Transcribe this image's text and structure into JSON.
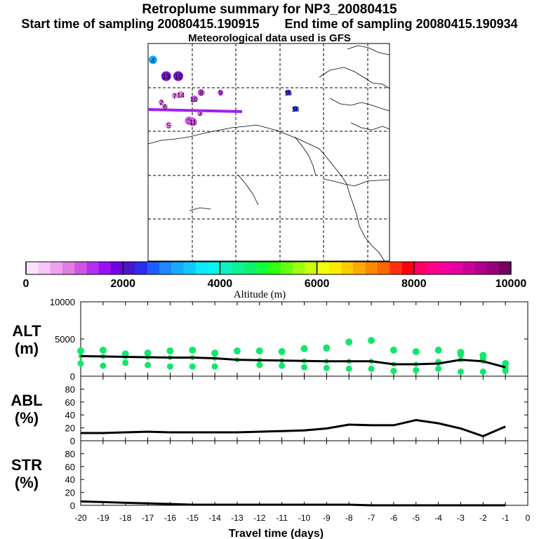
{
  "header": {
    "title": "Retroplume summary for NP3_20080415",
    "start_time": "Start time of sampling 20080415.190915",
    "end_time": "End time of sampling 20080415.190934",
    "met_data": "Meteorological data used is GFS"
  },
  "colorbar": {
    "colors": [
      "#fbe0fb",
      "#f6c6f6",
      "#eea2ee",
      "#e17ee1",
      "#cf55e6",
      "#b430ee",
      "#9a10f2",
      "#7200e6",
      "#4a14cc",
      "#2c2cf0",
      "#1e5cff",
      "#1e86ff",
      "#16aaff",
      "#10c8ff",
      "#10e6ff",
      "#08f4ee",
      "#10f0c0",
      "#10f096",
      "#10f070",
      "#10ff3a",
      "#30ff10",
      "#66ff10",
      "#9cff10",
      "#caff10",
      "#f0ff10",
      "#ffec00",
      "#ffcc00",
      "#ffaa00",
      "#ff8800",
      "#ff6600",
      "#ff3010",
      "#ff0010",
      "#ff0060",
      "#ff0088",
      "#f800a0",
      "#e600a0",
      "#cc0096",
      "#b0008c",
      "#960078",
      "#780062"
    ],
    "tick_labels": [
      "0",
      "2000",
      "4000",
      "6000",
      "8000",
      "10000"
    ],
    "label": "Altitude (m)"
  },
  "map": {
    "points": [
      {
        "label": "4",
        "color": "#16aaff",
        "size": 6,
        "tx": 0.02,
        "ty": 0.075
      },
      {
        "label": "13",
        "color": "#7a14d2",
        "size": 7,
        "tx": 0.075,
        "ty": 0.15
      },
      {
        "label": "12",
        "color": "#7a14d2",
        "size": 7,
        "tx": 0.125,
        "ty": 0.15
      },
      {
        "label": "8",
        "color": "#cf55e6",
        "size": 5,
        "tx": 0.22,
        "ty": 0.225
      },
      {
        "label": "9",
        "color": "#cf55e6",
        "size": 4,
        "tx": 0.3,
        "ty": 0.225
      },
      {
        "label": "14",
        "color": "#e17ee1",
        "size": 5,
        "tx": 0.135,
        "ty": 0.235
      },
      {
        "label": "7",
        "color": "#e17ee1",
        "size": 4,
        "tx": 0.11,
        "ty": 0.24
      },
      {
        "label": "10",
        "color": "#cf55e6",
        "size": 5,
        "tx": 0.19,
        "ty": 0.255
      },
      {
        "label": "2",
        "color": "#e17ee1",
        "size": 4,
        "tx": 0.055,
        "ty": 0.27
      },
      {
        "label": "6",
        "color": "#e17ee1",
        "size": 4,
        "tx": 0.07,
        "ty": 0.29
      },
      {
        "label": "3",
        "color": "#e17ee1",
        "size": 4,
        "tx": 0.215,
        "ty": 0.32
      },
      {
        "label": "1",
        "color": "#cf55e6",
        "size": 6,
        "tx": 0.17,
        "ty": 0.355
      },
      {
        "label": "11",
        "color": "#cf55e6",
        "size": 6,
        "tx": 0.185,
        "ty": 0.36
      },
      {
        "label": "5",
        "color": "#eea2ee",
        "size": 5,
        "tx": 0.085,
        "ty": 0.375
      },
      {
        "label": "15",
        "color": "#2c2cf0",
        "size": 4,
        "tx": 0.58,
        "ty": 0.225
      },
      {
        "label": "16",
        "color": "#2c2cf0",
        "size": 4,
        "tx": 0.61,
        "ty": 0.3
      }
    ]
  },
  "chart_data": [
    {
      "type": "line",
      "title": "ALT",
      "ylabel_lines": [
        "ALT",
        "(m)"
      ],
      "x": [
        -20,
        -19,
        -18,
        -17,
        -16,
        -15,
        -14,
        -13,
        -12,
        -11,
        -10,
        -9,
        -8,
        -7,
        -6,
        -5,
        -4,
        -3,
        -2,
        -1
      ],
      "xlim": [
        -20,
        0
      ],
      "ylim": [
        0,
        10000
      ],
      "yticks": [
        0,
        5000,
        10000
      ],
      "median": [
        2700,
        2650,
        2600,
        2550,
        2500,
        2500,
        2400,
        2200,
        2150,
        2100,
        2050,
        2000,
        2000,
        2000,
        1600,
        1600,
        1700,
        2200,
        2000,
        1200
      ],
      "scatter_low": [
        1700,
        1400,
        1800,
        1500,
        1300,
        1300,
        1300,
        null,
        1500,
        1400,
        1200,
        1100,
        1000,
        1000,
        700,
        800,
        1000,
        600,
        600,
        700
      ],
      "scatter_high": [
        3400,
        3500,
        3000,
        3100,
        3400,
        3500,
        3100,
        3400,
        3400,
        3300,
        3700,
        3800,
        4600,
        4800,
        3500,
        3300,
        3500,
        3200,
        2800,
        1700
      ],
      "scatter_extra": [
        null,
        null,
        null,
        null,
        null,
        null,
        null,
        null,
        null,
        null,
        null,
        null,
        null,
        null,
        null,
        null,
        1900,
        2900,
        2300,
        1100
      ],
      "point_color": "#10e86a",
      "series_color": "#000000"
    },
    {
      "type": "line",
      "title": "ABL",
      "ylabel_lines": [
        "ABL",
        "(%)"
      ],
      "x": [
        -20,
        -19,
        -18,
        -17,
        -16,
        -15,
        -14,
        -13,
        -12,
        -11,
        -10,
        -9,
        -8,
        -7,
        -6,
        -5,
        -4,
        -3,
        -2,
        -1
      ],
      "xlim": [
        -20,
        0
      ],
      "ylim": [
        0,
        100
      ],
      "yticks": [
        0,
        20,
        40,
        60,
        80
      ],
      "values": [
        12,
        12,
        13,
        14,
        13,
        13,
        13,
        13,
        14,
        15,
        16,
        19,
        25,
        24,
        24,
        32,
        27,
        19,
        7,
        22
      ]
    },
    {
      "type": "line",
      "title": "STR",
      "ylabel_lines": [
        "STR",
        "(%)"
      ],
      "x": [
        -20,
        -19,
        -18,
        -17,
        -16,
        -15,
        -14,
        -13,
        -12,
        -11,
        -10,
        -9,
        -8,
        -7,
        -6,
        -5,
        -4,
        -3,
        -2,
        -1
      ],
      "xlim": [
        -20,
        0
      ],
      "ylim": [
        0,
        100
      ],
      "yticks": [
        0,
        20,
        40,
        60,
        80
      ],
      "values": [
        6,
        5,
        4,
        3,
        2,
        1,
        1,
        1,
        1,
        1,
        1,
        1,
        1,
        0,
        0,
        0,
        0,
        0,
        0,
        0
      ],
      "xtick_labels": [
        "-20",
        "-19",
        "-18",
        "-17",
        "-16",
        "-15",
        "-14",
        "-13",
        "-12",
        "-11",
        "-10",
        "-9",
        "-8",
        "-7",
        "-6",
        "-5",
        "-4",
        "-3",
        "-2",
        "-1",
        "0"
      ],
      "xlabel": "Travel time (days)"
    }
  ]
}
